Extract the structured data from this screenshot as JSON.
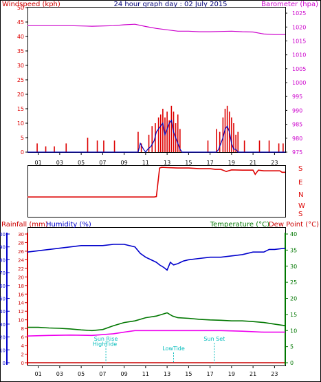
{
  "title": "24 hour graph day : 02 July 2015",
  "x_ticks": [
    "01",
    "03",
    "05",
    "07",
    "09",
    "11",
    "13",
    "15",
    "17",
    "19",
    "21",
    "23"
  ],
  "colors": {
    "wind": "#dd0000",
    "gust": "#0000bb",
    "baro": "#cc00cc",
    "dir": "#dd0000",
    "rain": "#cc0000",
    "humidity": "#0000cc",
    "temperature": "#007700",
    "dewpoint": "#ee00ee",
    "annotation": "#00bbbb",
    "axis": "#000000"
  },
  "chart_data": [
    {
      "type": "line",
      "name": "wind-baro",
      "left_axis_label": "Windspeed (kph)",
      "right_axis_label": "Barometer (hpa)",
      "left_ticks": [
        "0",
        "5",
        "10",
        "15",
        "20",
        "25",
        "30",
        "35",
        "40",
        "45",
        "50"
      ],
      "right_ticks": [
        "975",
        "980",
        "985",
        "990",
        "995",
        "1000",
        "1005",
        "1010",
        "1015",
        "1020",
        "1025"
      ],
      "ylim_left": [
        0,
        50
      ],
      "ylim_right": [
        975,
        1027
      ],
      "xlim": [
        0,
        24
      ],
      "barometer": {
        "x": [
          0,
          2,
          4,
          6,
          8,
          9,
          10,
          11,
          12,
          13,
          14,
          15,
          16,
          17,
          18,
          19,
          20,
          21,
          22,
          23,
          24
        ],
        "y": [
          1020.5,
          1020.5,
          1020.5,
          1020.3,
          1020.5,
          1020.8,
          1021,
          1020.2,
          1019.5,
          1019,
          1018.5,
          1018.5,
          1018.3,
          1018.3,
          1018.4,
          1018.5,
          1018.3,
          1018.2,
          1017.5,
          1017.3,
          1017.3
        ]
      },
      "gust_bars": {
        "x": [
          0.9,
          1.7,
          2.5,
          3.6,
          5.6,
          6.5,
          7.1,
          8.1,
          10.3,
          10.6,
          11.3,
          11.6,
          11.9,
          12.2,
          12.4,
          12.6,
          12.8,
          13.0,
          13.2,
          13.4,
          13.6,
          13.8,
          14.0,
          14.2,
          16.8,
          17.6,
          17.9,
          18.2,
          18.4,
          18.6,
          18.8,
          19.0,
          19.2,
          19.4,
          19.6,
          20.2,
          21.6,
          22.5,
          23.4,
          23.8
        ],
        "y": [
          3,
          2,
          2,
          3,
          5,
          4,
          4,
          4,
          7,
          3,
          6,
          9,
          10,
          12,
          13,
          15,
          12,
          14,
          11,
          16,
          14,
          10,
          13,
          8,
          4,
          8,
          7,
          12,
          15,
          16,
          14,
          12,
          10,
          6,
          7,
          4,
          4,
          4,
          3,
          3
        ]
      },
      "wind_line": {
        "x": [
          0,
          10.3,
          10.5,
          10.8,
          11,
          11.2,
          11.5,
          11.8,
          12,
          12.2,
          12.4,
          12.6,
          12.8,
          13,
          13.2,
          13.4,
          13.6,
          13.8,
          14,
          14.2,
          14.4,
          17.6,
          17.8,
          18,
          18.2,
          18.4,
          18.6,
          18.8,
          19,
          19.2,
          19.4,
          19.6,
          24
        ],
        "y": [
          0,
          0,
          3,
          1,
          0,
          1,
          2,
          4,
          7,
          8,
          9,
          10,
          6,
          8,
          10,
          11,
          7,
          5,
          3,
          1,
          0,
          0,
          1,
          3,
          5,
          8,
          9,
          7,
          3,
          1,
          1,
          0,
          0
        ]
      }
    },
    {
      "type": "line",
      "name": "wind-direction",
      "right_labels": [
        "S",
        "E",
        "N",
        "W",
        "S"
      ],
      "ylim": [
        0,
        360
      ],
      "xlim": [
        0,
        24
      ],
      "direction": {
        "x": [
          0,
          8,
          11.5,
          11.8,
          12,
          12.3,
          12.5,
          13,
          14,
          15,
          16,
          17,
          17.5,
          18,
          18.2,
          18.5,
          19,
          20,
          21,
          21.2,
          21.5,
          22,
          23,
          23.5,
          23.7,
          24
        ],
        "y": [
          140,
          140,
          140,
          140,
          143,
          345,
          350,
          348,
          345,
          345,
          340,
          340,
          335,
          335,
          330,
          320,
          332,
          330,
          330,
          300,
          330,
          325,
          325,
          325,
          315,
          315
        ]
      }
    },
    {
      "type": "line",
      "name": "rain-hum-temp",
      "rain_label": "Rainfall (mm)",
      "humidity_label": "Humidity (%)",
      "temperature_label": "Temperature (°C)",
      "dewpoint_label": "Dew Point (°C)",
      "humidity_ticks": [
        "0",
        "10",
        "20",
        "30",
        "40",
        "50",
        "60",
        "70",
        "80",
        "90",
        "100"
      ],
      "rain_ticks": [
        "0",
        "2",
        "4",
        "6",
        "8",
        "10",
        "12",
        "14",
        "16",
        "18",
        "20",
        "22",
        "24",
        "26",
        "28",
        "30"
      ],
      "temp_ticks": [
        "0",
        "5",
        "10",
        "15",
        "20",
        "25",
        "30",
        "35",
        "40"
      ],
      "ylim_humidity": [
        0,
        100
      ],
      "ylim_temp": [
        0,
        40
      ],
      "xlim": [
        0,
        24
      ],
      "humidity": {
        "x": [
          0,
          1,
          2,
          3,
          4,
          5,
          6,
          7,
          8,
          9,
          10,
          10.5,
          11,
          11.5,
          12,
          12.3,
          12.7,
          13,
          13.3,
          13.6,
          14,
          14.5,
          15,
          16,
          17,
          18,
          19,
          20,
          21,
          22,
          22.5,
          23,
          24
        ],
        "y": [
          86,
          87,
          88,
          89,
          90,
          91,
          91,
          91,
          92,
          92,
          90,
          85,
          82,
          80,
          78,
          76,
          74,
          72,
          78,
          76,
          77,
          79,
          80,
          81,
          82,
          82,
          83,
          84,
          86,
          86,
          88,
          88,
          89
        ]
      },
      "temperature": {
        "x": [
          0,
          1,
          2,
          3,
          4,
          5,
          6,
          7,
          8,
          9,
          10,
          11,
          12,
          12.5,
          13,
          13.5,
          14,
          15,
          16,
          17,
          18,
          19,
          20,
          21,
          22,
          23,
          24
        ],
        "y": [
          11,
          11,
          10.8,
          10.7,
          10.5,
          10.2,
          10,
          10.3,
          11.5,
          12.5,
          13,
          14,
          14.5,
          15,
          15.5,
          14.5,
          14,
          13.8,
          13.5,
          13.3,
          13.2,
          13,
          13,
          12.8,
          12.5,
          12,
          11.5
        ]
      },
      "dewpoint": {
        "x": [
          0,
          2,
          4,
          6,
          8,
          9,
          10,
          11,
          12,
          13,
          14,
          16,
          18,
          20,
          22,
          23,
          24
        ],
        "y": [
          8.3,
          8.5,
          8.6,
          8.5,
          9,
          9.5,
          10,
          10,
          10,
          10,
          10,
          10,
          10,
          9.8,
          9.5,
          9.5,
          9.5
        ]
      },
      "annotations": [
        {
          "text": "Sun Rise",
          "x": 7.3,
          "level": 6.8
        },
        {
          "text": "HighTide",
          "x": 7.2,
          "level": 5.2
        },
        {
          "text": "LowTide",
          "x": 13.6,
          "level": 3.8
        },
        {
          "text": "Sun Set",
          "x": 17.4,
          "level": 6.8
        }
      ]
    }
  ]
}
